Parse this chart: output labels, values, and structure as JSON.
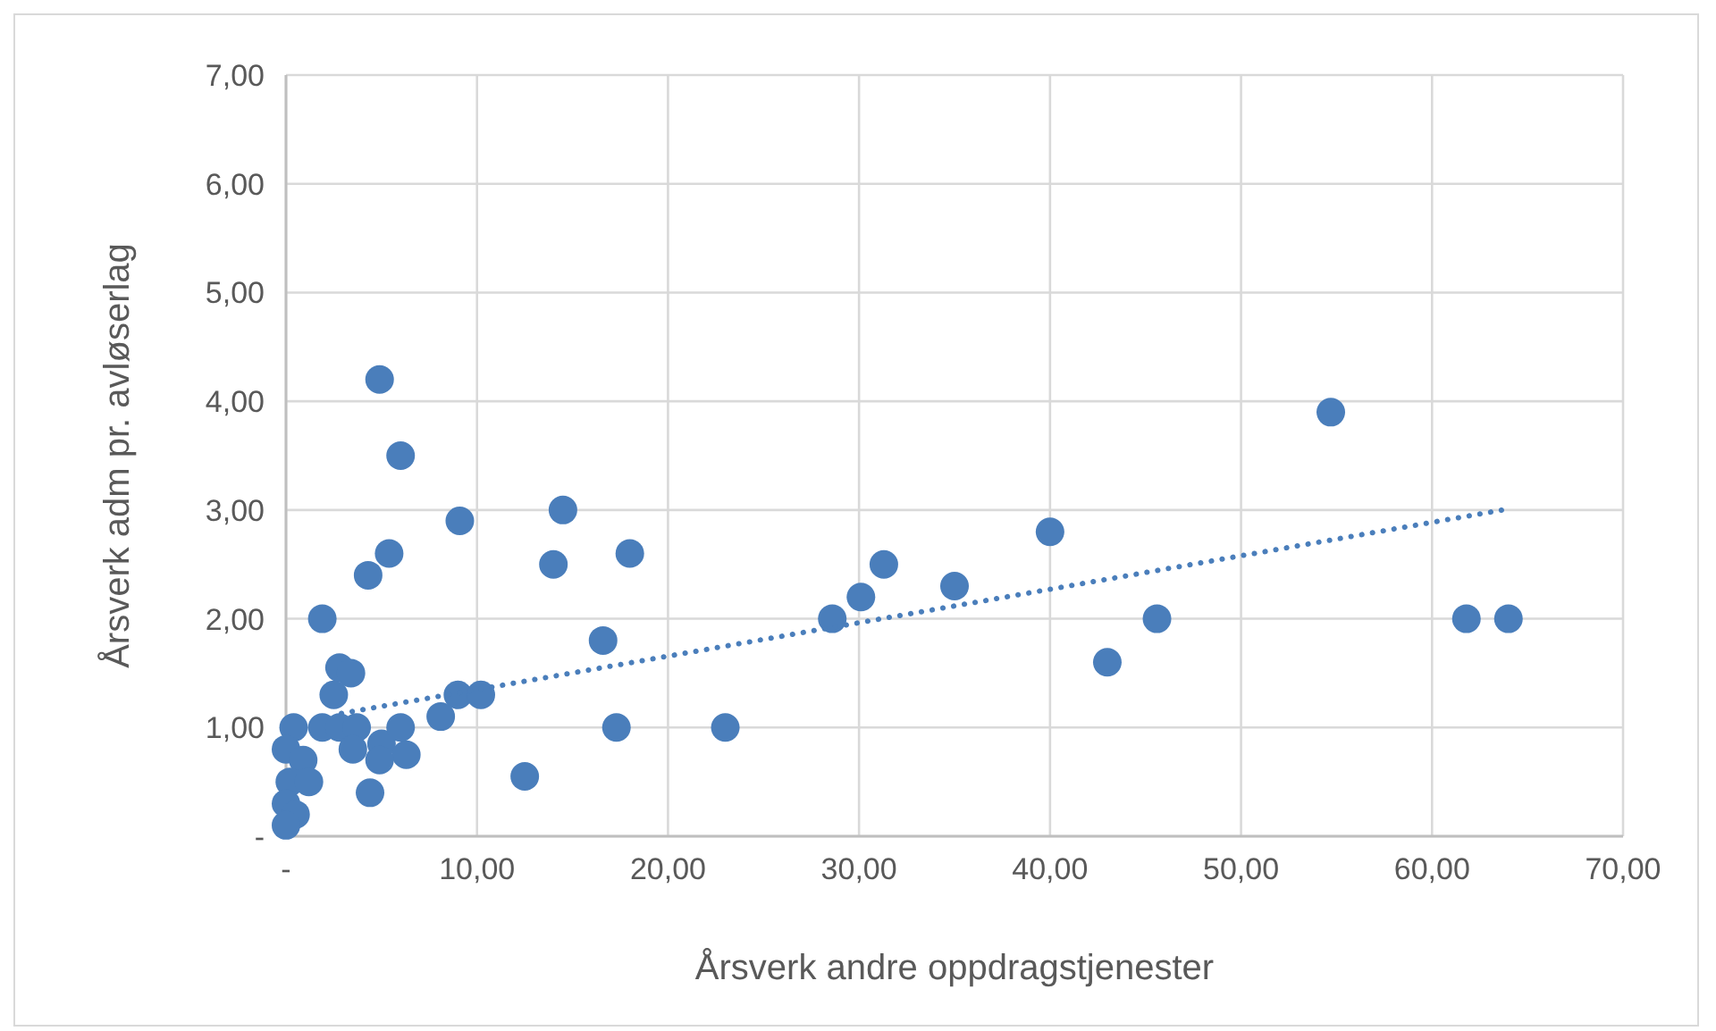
{
  "chart_data": {
    "type": "scatter",
    "xlabel": "Årsverk andre oppdragstjenester",
    "ylabel": "Årsverk adm pr. avløserlag",
    "xlim": [
      0,
      70
    ],
    "ylim": [
      0,
      7
    ],
    "xticks": [
      {
        "value": 0,
        "label": "-"
      },
      {
        "value": 10,
        "label": "10,00"
      },
      {
        "value": 20,
        "label": "20,00"
      },
      {
        "value": 30,
        "label": "30,00"
      },
      {
        "value": 40,
        "label": "40,00"
      },
      {
        "value": 50,
        "label": "50,00"
      },
      {
        "value": 60,
        "label": "60,00"
      },
      {
        "value": 70,
        "label": "70,00"
      }
    ],
    "yticks": [
      {
        "value": 0,
        "label": "-"
      },
      {
        "value": 1,
        "label": "1,00"
      },
      {
        "value": 2,
        "label": "2,00"
      },
      {
        "value": 3,
        "label": "3,00"
      },
      {
        "value": 4,
        "label": "4,00"
      },
      {
        "value": 5,
        "label": "5,00"
      },
      {
        "value": 6,
        "label": "6,00"
      },
      {
        "value": 7,
        "label": "7,00"
      }
    ],
    "grid": true,
    "marker": "circle",
    "series": [
      {
        "color": "#4a7ebb",
        "x": [
          4.9,
          6.0,
          9.1,
          14.5,
          14.0,
          18.0,
          5.4,
          4.3,
          1.9,
          16.6,
          2.8,
          3.4,
          2.5,
          9.0,
          10.2,
          8.1,
          17.3,
          23.0,
          12.5,
          0.4,
          0,
          0.9,
          0.2,
          1.2,
          0,
          0.5,
          0,
          1.9,
          2.8,
          3.7,
          3.5,
          5.0,
          6.0,
          6.3,
          4.9,
          4.4,
          28.6,
          30.1,
          31.3,
          35.0,
          40.0,
          43.0,
          45.6,
          54.7,
          61.8,
          64.0
        ],
        "values": [
          4.2,
          3.5,
          2.9,
          3.0,
          2.5,
          2.6,
          2.6,
          2.4,
          2.0,
          1.8,
          1.55,
          1.5,
          1.3,
          1.3,
          1.3,
          1.1,
          1.0,
          1.0,
          0.55,
          1.0,
          0.8,
          0.7,
          0.5,
          0.5,
          0.3,
          0.2,
          0.1,
          1.0,
          1.0,
          1.0,
          0.8,
          0.85,
          1.0,
          0.75,
          0.7,
          0.4,
          2.0,
          2.2,
          2.5,
          2.3,
          2.8,
          1.6,
          2.0,
          3.9,
          2.0,
          2.0
        ]
      },
      {
        "type": "line",
        "color": "#4a7ebb",
        "line_style": "dotted",
        "marker": "none",
        "x": [
          2.9,
          64
        ],
        "values": [
          1.13,
          3.01
        ]
      }
    ]
  }
}
